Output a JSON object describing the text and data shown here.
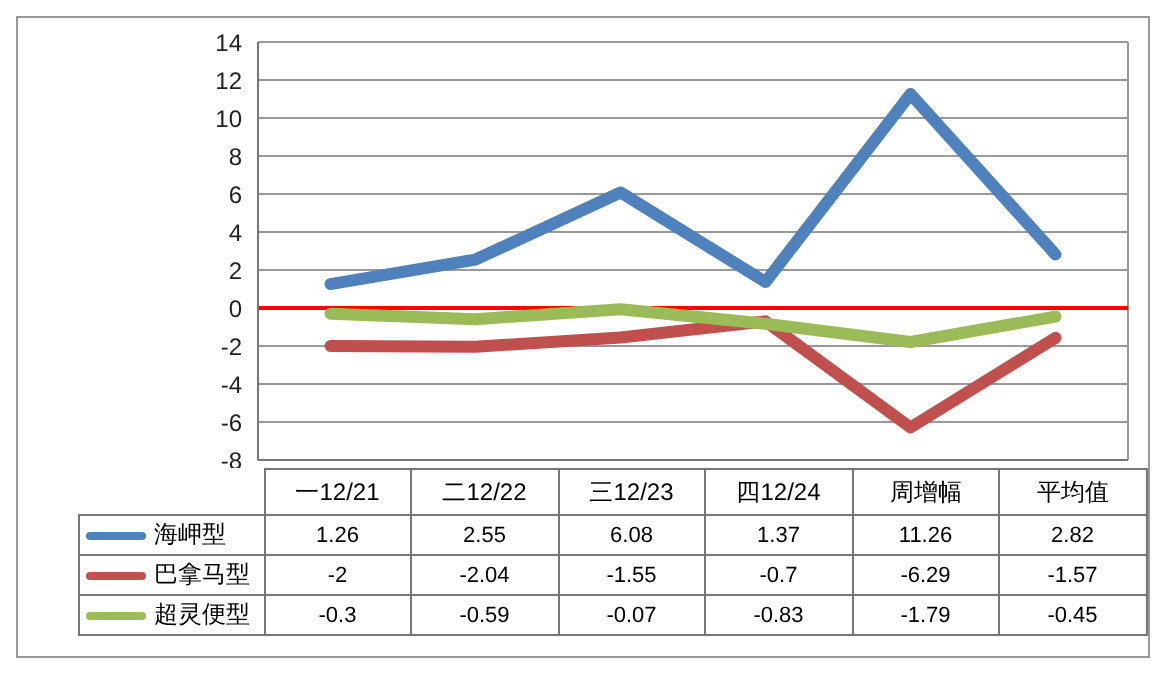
{
  "chart_data": {
    "type": "line",
    "categories": [
      "一12/21",
      "二12/22",
      "三12/23",
      "四12/24",
      "周增幅",
      "平均值"
    ],
    "series": [
      {
        "name": "海岬型",
        "color": "#4f81bd",
        "values": [
          1.26,
          2.55,
          6.08,
          1.37,
          11.26,
          2.82
        ]
      },
      {
        "name": "巴拿马型",
        "color": "#c0504d",
        "values": [
          -2,
          -2.04,
          -1.55,
          -0.7,
          -6.29,
          -1.57
        ]
      },
      {
        "name": "超灵便型",
        "color": "#9bbb59",
        "values": [
          -0.3,
          -0.59,
          -0.07,
          -0.83,
          -1.79,
          -0.45
        ]
      }
    ],
    "ylim": [
      -8,
      14
    ],
    "yticks": [
      -8,
      -6,
      -4,
      -2,
      0,
      2,
      4,
      6,
      8,
      10,
      12,
      14
    ],
    "grid": true,
    "legend": "bottom",
    "data_labels": true,
    "marker": "none",
    "line_style": "solid",
    "ref_lines": [
      {
        "axis": "y",
        "value": 0,
        "color": "#ff0000"
      }
    ]
  }
}
